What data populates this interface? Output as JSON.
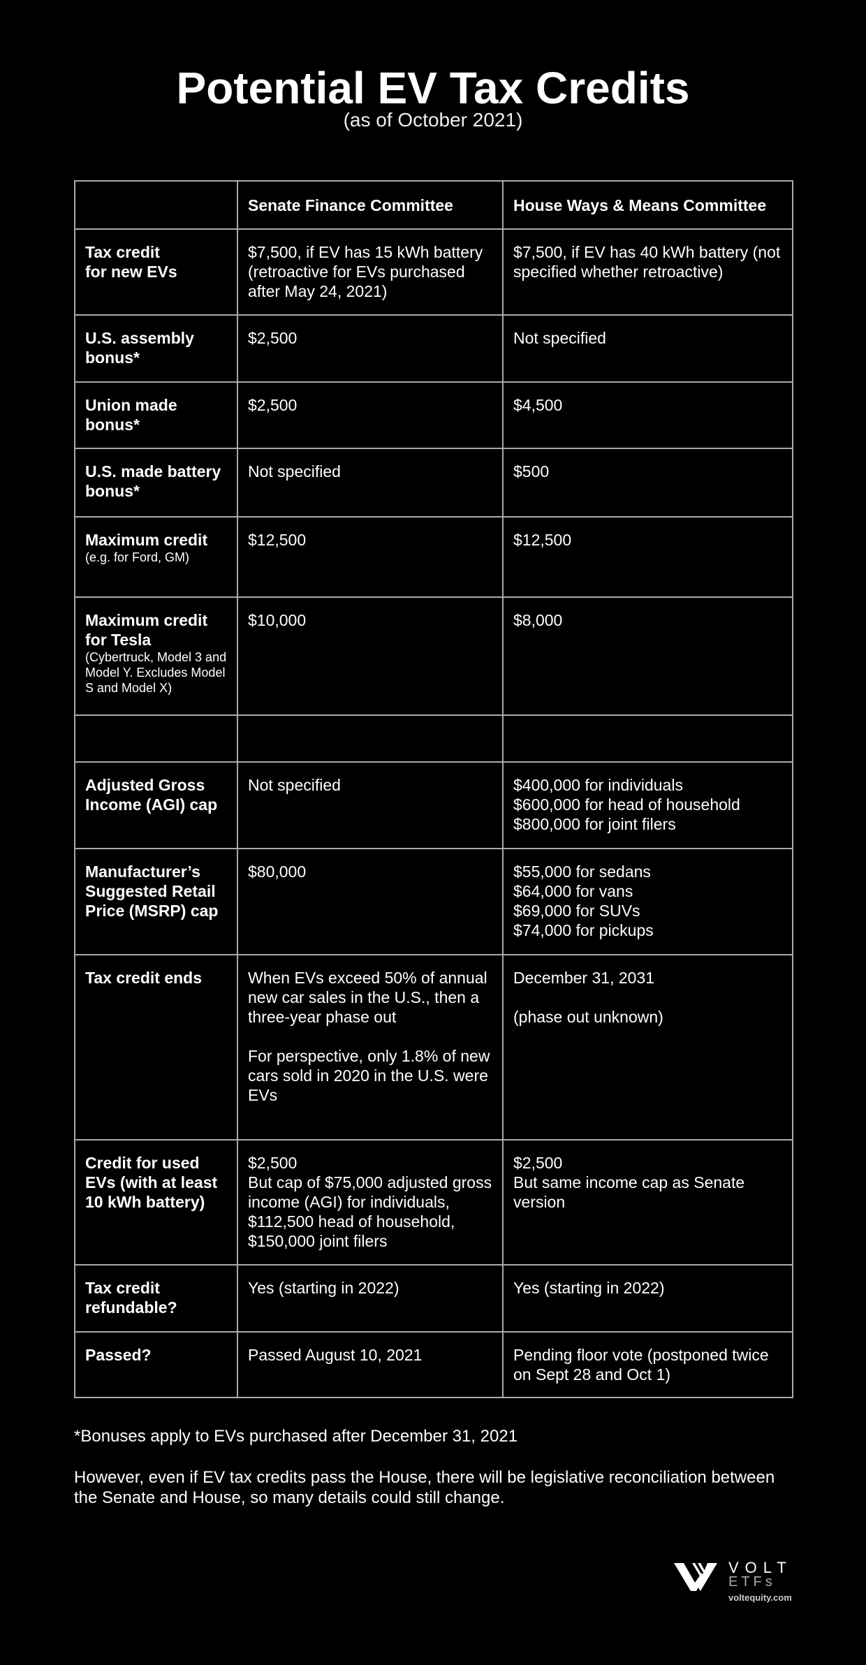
{
  "title": "Potential EV Tax Credits",
  "subtitle": "(as of October 2021)",
  "columns": [
    "",
    "Senate Finance Committee",
    "House Ways & Means Committee"
  ],
  "rows": [
    {
      "label": "Tax credit\nfor new EVs",
      "note": "",
      "senate": "$7,500, if EV has 15 kWh battery (retroactive for EVs purchased after May 24, 2021)",
      "house": "$7,500, if EV has 40 kWh battery (not specified whether retroactive)"
    },
    {
      "label": "U.S. assembly bonus*",
      "note": "",
      "senate": "$2,500",
      "house": "Not specified"
    },
    {
      "label": "Union made bonus*",
      "note": "",
      "senate": "$2,500",
      "house": "$4,500"
    },
    {
      "label": "U.S. made battery bonus*",
      "note": "",
      "senate": "Not specified",
      "house": "$500"
    },
    {
      "label": "Maximum credit",
      "note": "(e.g. for Ford, GM)",
      "senate": "$12,500",
      "house": "$12,500"
    },
    {
      "label": "Maximum credit for Tesla",
      "note": "(Cybertruck, Model 3 and Model Y. Excludes Model S and Model X)",
      "senate": "$10,000",
      "house": "$8,000"
    },
    {
      "label": "",
      "note": "",
      "senate": "",
      "house": ""
    },
    {
      "label": "Adjusted Gross Income (AGI) cap",
      "note": "",
      "senate": "Not specified",
      "house": "$400,000 for individuals\n$600,000 for head of household\n$800,000 for joint filers"
    },
    {
      "label": "Manufacturer’s Suggested Retail Price (MSRP) cap",
      "note": "",
      "senate": "$80,000",
      "house": "$55,000 for sedans\n$64,000 for vans\n$69,000 for SUVs\n$74,000 for pickups"
    },
    {
      "label": "Tax credit ends",
      "note": "",
      "senate": "When EVs exceed 50% of annual new car sales in the U.S., then a three-year phase out\n\nFor perspective, only 1.8% of new cars sold in 2020 in the U.S. were EVs",
      "house": "December 31, 2031\n\n(phase out unknown)"
    },
    {
      "label": "Credit for used EVs (with at least 10 kWh battery)",
      "note": "",
      "senate": "$2,500\nBut cap of $75,000 adjusted gross income (AGI) for individuals, $112,500 head of household, $150,000 joint filers",
      "house": "$2,500\nBut same income cap as Senate version"
    },
    {
      "label": "Tax credit refundable?",
      "note": "",
      "senate": "Yes (starting in 2022)",
      "house": "Yes (starting in 2022)"
    },
    {
      "label": "Passed?",
      "note": "",
      "senate": "Passed August 10, 2021",
      "house": "Pending floor vote (postponed twice on Sept 28 and Oct 1)"
    }
  ],
  "footnote": "*Bonuses apply to EVs purchased after December 31, 2021",
  "disclaimer": "However, even if EV tax credits pass the House, there will be legislative reconciliation between the Senate and House, so many details could still change.",
  "logo": {
    "name": "VOLT",
    "sub": "ETFs",
    "url": "voltequity.com",
    "icon": "volt-v-logo-icon"
  }
}
